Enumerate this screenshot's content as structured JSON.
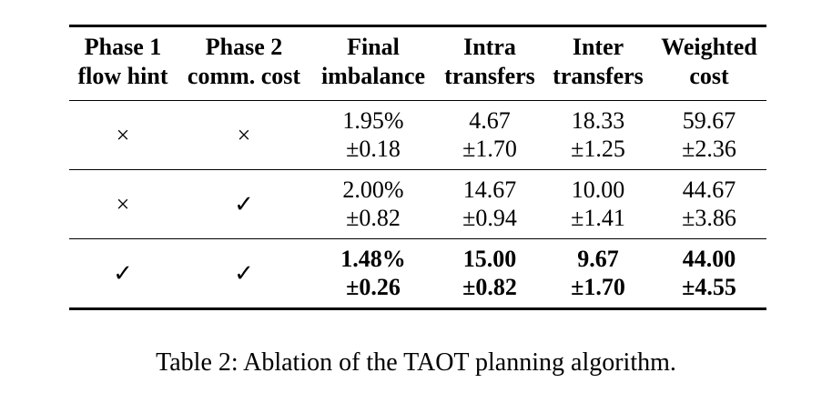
{
  "table": {
    "headers": [
      {
        "line1": "Phase 1",
        "line2": "flow hint"
      },
      {
        "line1": "Phase 2",
        "line2": "comm. cost"
      },
      {
        "line1": "Final",
        "line2": "imbalance"
      },
      {
        "line1": "Intra",
        "line2": "transfers"
      },
      {
        "line1": "Inter",
        "line2": "transfers"
      },
      {
        "line1": "Weighted",
        "line2": "cost"
      }
    ],
    "rows": [
      {
        "phase1": "×",
        "phase2": "×",
        "cells": [
          {
            "mean": "1.95%",
            "std": "±0.18"
          },
          {
            "mean": "4.67",
            "std": "±1.70"
          },
          {
            "mean": "18.33",
            "std": "±1.25"
          },
          {
            "mean": "59.67",
            "std": "±2.36"
          }
        ]
      },
      {
        "phase1": "×",
        "phase2": "✓",
        "cells": [
          {
            "mean": "2.00%",
            "std": "±0.82"
          },
          {
            "mean": "14.67",
            "std": "±0.94"
          },
          {
            "mean": "10.00",
            "std": "±1.41"
          },
          {
            "mean": "44.67",
            "std": "±3.86"
          }
        ]
      },
      {
        "phase1": "✓",
        "phase2": "✓",
        "cells": [
          {
            "mean": "1.48%",
            "std": "±0.26"
          },
          {
            "mean": "15.00",
            "std": "±0.82"
          },
          {
            "mean": "9.67",
            "std": "±1.70"
          },
          {
            "mean": "44.00",
            "std": "±4.55"
          }
        ]
      }
    ]
  },
  "caption": "Table 2: Ablation of the TAOT planning algorithm."
}
